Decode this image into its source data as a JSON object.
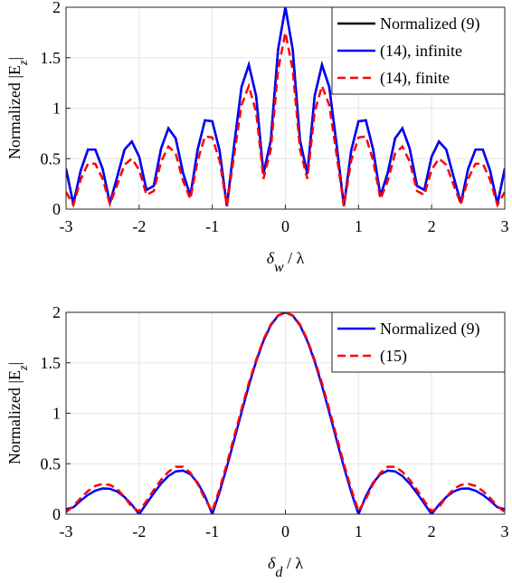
{
  "chart_data": [
    {
      "type": "line",
      "x": [
        -3,
        -2.9,
        -2.8,
        -2.7,
        -2.6,
        -2.5,
        -2.4,
        -2.3,
        -2.2,
        -2.1,
        -2,
        -1.9,
        -1.8,
        -1.7,
        -1.6,
        -1.5,
        -1.4,
        -1.3,
        -1.2,
        -1.1,
        -1,
        -0.9,
        -0.8,
        -0.7,
        -0.6,
        -0.5,
        -0.4,
        -0.3,
        -0.2,
        -0.1,
        0,
        0.1,
        0.2,
        0.3,
        0.4,
        0.5,
        0.6,
        0.7,
        0.8,
        0.9,
        1,
        1.1,
        1.2,
        1.3,
        1.4,
        1.5,
        1.6,
        1.7,
        1.8,
        1.9,
        2,
        2.1,
        2.2,
        2.3,
        2.4,
        2.5,
        2.6,
        2.7,
        2.8,
        2.9,
        3
      ],
      "series": [
        {
          "name": "Normalized (9)",
          "color": "#000000",
          "linestyle": "solid",
          "values": [
            0.4,
            0.05,
            0.38,
            0.59,
            0.59,
            0.4,
            0.06,
            0.32,
            0.59,
            0.67,
            0.52,
            0.19,
            0.23,
            0.6,
            0.8,
            0.7,
            0.36,
            0.13,
            0.59,
            0.88,
            0.87,
            0.58,
            0.03,
            0.64,
            1.21,
            1.43,
            1.12,
            0.35,
            0.68,
            1.58,
            2.0,
            1.58,
            0.68,
            0.35,
            1.12,
            1.43,
            1.21,
            0.64,
            0.03,
            0.58,
            0.87,
            0.88,
            0.59,
            0.13,
            0.36,
            0.7,
            0.8,
            0.6,
            0.23,
            0.19,
            0.52,
            0.67,
            0.59,
            0.32,
            0.06,
            0.4,
            0.59,
            0.59,
            0.38,
            0.05,
            0.4
          ]
        },
        {
          "name": "(14), infinite",
          "color": "#0000ff",
          "linestyle": "solid",
          "values": [
            0.4,
            0.05,
            0.38,
            0.59,
            0.59,
            0.4,
            0.06,
            0.32,
            0.59,
            0.67,
            0.52,
            0.19,
            0.23,
            0.6,
            0.8,
            0.7,
            0.36,
            0.13,
            0.59,
            0.88,
            0.87,
            0.58,
            0.03,
            0.64,
            1.21,
            1.43,
            1.12,
            0.35,
            0.68,
            1.58,
            2.0,
            1.58,
            0.68,
            0.35,
            1.12,
            1.43,
            1.21,
            0.64,
            0.03,
            0.58,
            0.87,
            0.88,
            0.59,
            0.13,
            0.36,
            0.7,
            0.8,
            0.6,
            0.23,
            0.19,
            0.52,
            0.67,
            0.59,
            0.32,
            0.06,
            0.4,
            0.59,
            0.59,
            0.38,
            0.05,
            0.4
          ]
        },
        {
          "name": "(14), finite",
          "color": "#ff0000",
          "linestyle": "dashed",
          "values": [
            0.17,
            0.04,
            0.29,
            0.45,
            0.45,
            0.3,
            0.05,
            0.24,
            0.44,
            0.5,
            0.39,
            0.14,
            0.18,
            0.47,
            0.62,
            0.55,
            0.28,
            0.1,
            0.48,
            0.72,
            0.71,
            0.48,
            0.03,
            0.54,
            1.03,
            1.22,
            0.96,
            0.3,
            0.59,
            1.38,
            1.75,
            1.38,
            0.59,
            0.3,
            0.96,
            1.22,
            1.03,
            0.54,
            0.03,
            0.48,
            0.71,
            0.72,
            0.48,
            0.1,
            0.28,
            0.55,
            0.62,
            0.47,
            0.18,
            0.14,
            0.39,
            0.5,
            0.44,
            0.24,
            0.05,
            0.3,
            0.45,
            0.45,
            0.29,
            0.04,
            0.17
          ]
        }
      ],
      "xlim": [
        -3,
        3
      ],
      "ylim": [
        0,
        2
      ],
      "xticks": [
        -3,
        -2,
        -1,
        0,
        1,
        2,
        3
      ],
      "yticks": [
        0,
        0.5,
        1,
        1.5,
        2
      ],
      "grid": true,
      "legend": "upper right",
      "xlabel_parts": [
        "δ",
        "w",
        " / λ"
      ],
      "ylabel_parts": [
        "Normalized |E",
        "z",
        "|"
      ]
    },
    {
      "type": "line",
      "x": [
        -3,
        -2.9,
        -2.8,
        -2.7,
        -2.6,
        -2.5,
        -2.4,
        -2.3,
        -2.2,
        -2.1,
        -2,
        -1.9,
        -1.8,
        -1.7,
        -1.6,
        -1.5,
        -1.4,
        -1.3,
        -1.2,
        -1.1,
        -1,
        -0.9,
        -0.8,
        -0.7,
        -0.6,
        -0.5,
        -0.4,
        -0.3,
        -0.2,
        -0.1,
        0,
        0.1,
        0.2,
        0.3,
        0.4,
        0.5,
        0.6,
        0.7,
        0.8,
        0.9,
        1,
        1.1,
        1.2,
        1.3,
        1.4,
        1.5,
        1.6,
        1.7,
        1.8,
        1.9,
        2,
        2.1,
        2.2,
        2.3,
        2.4,
        2.5,
        2.6,
        2.7,
        2.8,
        2.9,
        3
      ],
      "series": [
        {
          "name": "Normalized (9)",
          "color": "#0000ff",
          "linestyle": "solid",
          "values": [
            0.05,
            0.068,
            0.134,
            0.191,
            0.233,
            0.255,
            0.252,
            0.224,
            0.17,
            0.094,
            0,
            0.104,
            0.208,
            0.303,
            0.378,
            0.424,
            0.432,
            0.396,
            0.312,
            0.179,
            0,
            0.219,
            0.468,
            0.736,
            1.009,
            1.273,
            1.514,
            1.717,
            1.871,
            1.967,
            2,
            1.967,
            1.871,
            1.717,
            1.514,
            1.273,
            1.009,
            0.736,
            0.468,
            0.219,
            0,
            0.179,
            0.312,
            0.396,
            0.432,
            0.424,
            0.378,
            0.303,
            0.208,
            0.104,
            0,
            0.094,
            0.17,
            0.224,
            0.252,
            0.255,
            0.233,
            0.191,
            0.134,
            0.068,
            0.05
          ]
        },
        {
          "name": "(15)",
          "color": "#ff0000",
          "linestyle": "dashed",
          "values": [
            0.02,
            0.08,
            0.16,
            0.23,
            0.28,
            0.3,
            0.29,
            0.25,
            0.17,
            0.07,
            0.03,
            0.13,
            0.24,
            0.34,
            0.42,
            0.47,
            0.47,
            0.41,
            0.3,
            0.15,
            0.03,
            0.25,
            0.5,
            0.77,
            1.04,
            1.3,
            1.53,
            1.73,
            1.88,
            1.97,
            2,
            1.97,
            1.88,
            1.73,
            1.53,
            1.3,
            1.04,
            0.77,
            0.5,
            0.25,
            0.03,
            0.15,
            0.3,
            0.41,
            0.47,
            0.47,
            0.42,
            0.34,
            0.24,
            0.13,
            0.03,
            0.07,
            0.17,
            0.25,
            0.29,
            0.3,
            0.28,
            0.23,
            0.16,
            0.08,
            0.02
          ]
        }
      ],
      "xlim": [
        -3,
        3
      ],
      "ylim": [
        0,
        2
      ],
      "xticks": [
        -3,
        -2,
        -1,
        0,
        1,
        2,
        3
      ],
      "yticks": [
        0,
        0.5,
        1,
        1.5,
        2
      ],
      "grid": true,
      "legend": "upper right",
      "xlabel_parts": [
        "δ",
        "d",
        " / λ"
      ],
      "ylabel_parts": [
        "Normalized |E",
        "z",
        "|"
      ]
    }
  ]
}
